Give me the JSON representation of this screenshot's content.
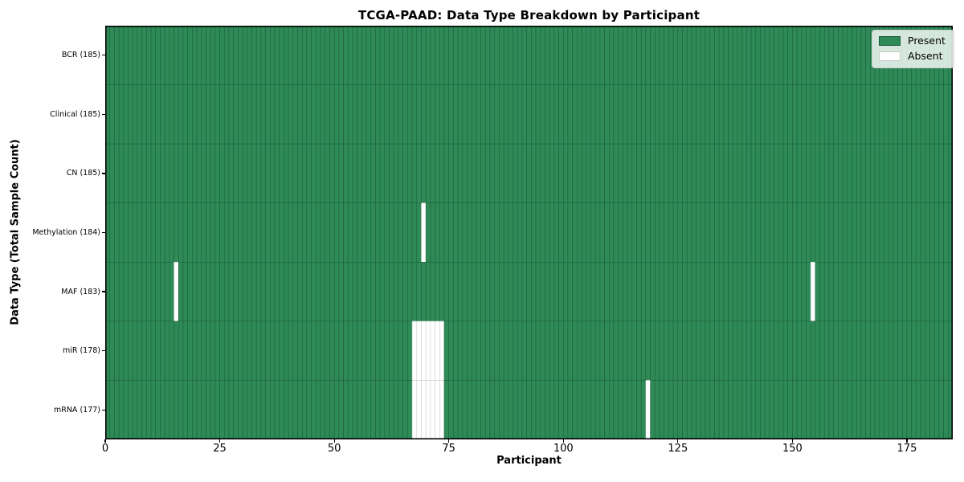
{
  "chart_data": {
    "type": "heatmap",
    "title": "TCGA-PAAD: Data Type Breakdown by Participant",
    "xlabel": "Participant",
    "ylabel": "Data Type (Total Sample Count)",
    "n_participants": 185,
    "x_axis": {
      "min": 0,
      "max": 185,
      "tick_values": [
        0,
        25,
        50,
        75,
        100,
        125,
        150,
        175
      ]
    },
    "rows": [
      {
        "label": "BCR (185)",
        "data_type": "BCR",
        "total_sample_count": 185,
        "absent_participants": []
      },
      {
        "label": "Clinical (185)",
        "data_type": "Clinical",
        "total_sample_count": 185,
        "absent_participants": []
      },
      {
        "label": "CN (185)",
        "data_type": "CN",
        "total_sample_count": 185,
        "absent_participants": []
      },
      {
        "label": "Methylation (184)",
        "data_type": "Methylation",
        "total_sample_count": 184,
        "absent_participants": [
          69
        ]
      },
      {
        "label": "MAF (183)",
        "data_type": "MAF",
        "total_sample_count": 183,
        "absent_participants": [
          15,
          154
        ]
      },
      {
        "label": "miR (178)",
        "data_type": "miR",
        "total_sample_count": 178,
        "absent_participants": [
          67,
          68,
          69,
          70,
          71,
          72,
          73
        ]
      },
      {
        "label": "mRNA (177)",
        "data_type": "mRNA",
        "total_sample_count": 177,
        "absent_participants": [
          67,
          68,
          69,
          70,
          71,
          72,
          73,
          118
        ]
      }
    ],
    "legend": {
      "position": "upper right",
      "present_label": "Present",
      "absent_label": "Absent"
    },
    "colors": {
      "present": "#2e8b57",
      "absent": "#ffffff",
      "present_edge": "#1e5c3a",
      "absent_edge": "#c9c9c9",
      "spine": "#000000",
      "background": "#ffffff"
    }
  }
}
